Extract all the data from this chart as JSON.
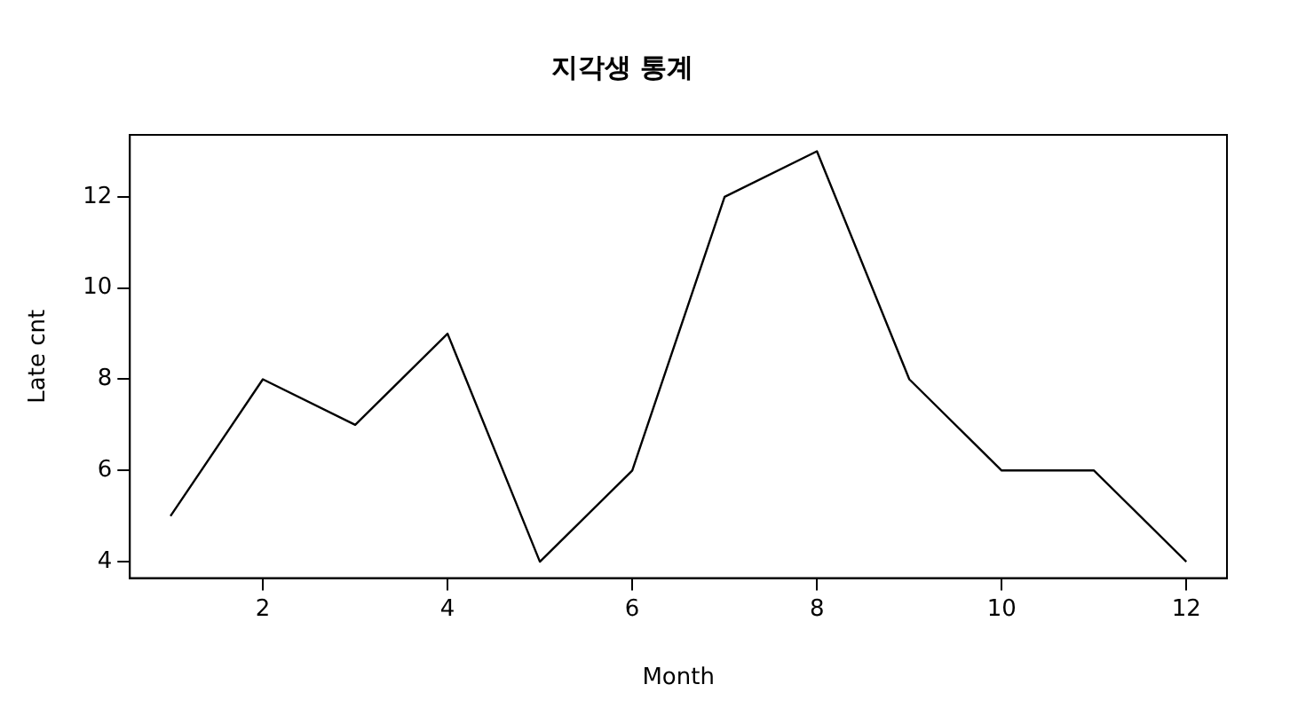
{
  "chart_data": {
    "type": "line",
    "title": "지각생 통계",
    "xlabel": "Month",
    "ylabel": "Late cnt",
    "x": [
      1,
      2,
      3,
      4,
      5,
      6,
      7,
      8,
      9,
      10,
      11,
      12
    ],
    "series": [
      {
        "color": "#000000",
        "values": [
          5,
          8,
          7,
          9,
          4,
          6,
          12,
          13,
          8,
          6,
          6,
          4
        ]
      }
    ],
    "xlim": [
      0.56,
      12.44
    ],
    "xticks": [
      2,
      4,
      6,
      8,
      10,
      12
    ],
    "ylim": [
      3.64,
      13.36
    ],
    "yticks": [
      4,
      6,
      8,
      10,
      12
    ],
    "grid": false,
    "legend": false,
    "marker": "none",
    "line_style": "solid"
  }
}
